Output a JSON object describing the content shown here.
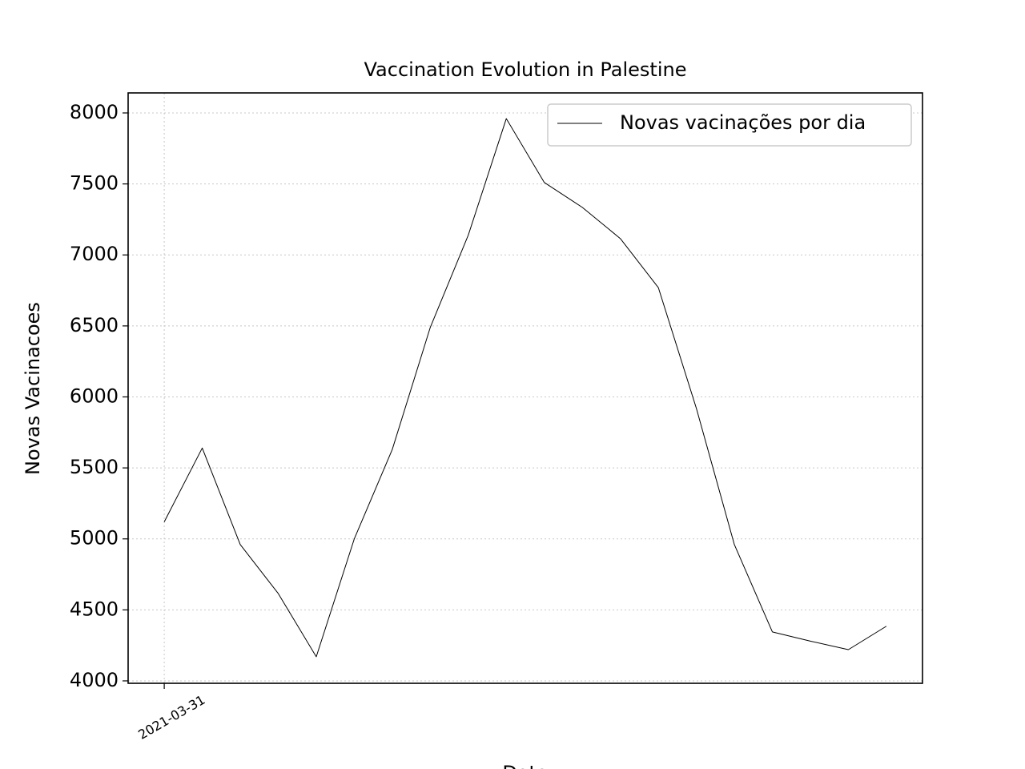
{
  "chart_data": {
    "type": "line",
    "title": "Vaccination Evolution in Palestine",
    "x_label": "Data",
    "y_label": "Novas Vacinacoes",
    "categories": [
      "2021-03-31",
      null,
      null,
      null,
      null,
      null,
      null,
      null,
      null,
      null,
      null,
      null,
      null,
      null,
      null,
      null,
      null,
      null,
      null,
      null
    ],
    "series": [
      {
        "name": "Novas vacinações por dia",
        "color": "#000000",
        "values": [
          5120,
          5640,
          4960,
          4615,
          4170,
          5000,
          5630,
          6490,
          7140,
          7960,
          7510,
          7335,
          7115,
          6770,
          5920,
          4960,
          4345,
          4280,
          4220,
          4385
        ]
      }
    ],
    "ylim": [
      3983,
      8141
    ],
    "yticks": [
      4000,
      4500,
      5000,
      5500,
      6000,
      6500,
      7000,
      7500,
      8000
    ],
    "grid": true,
    "legend": "upper right"
  }
}
